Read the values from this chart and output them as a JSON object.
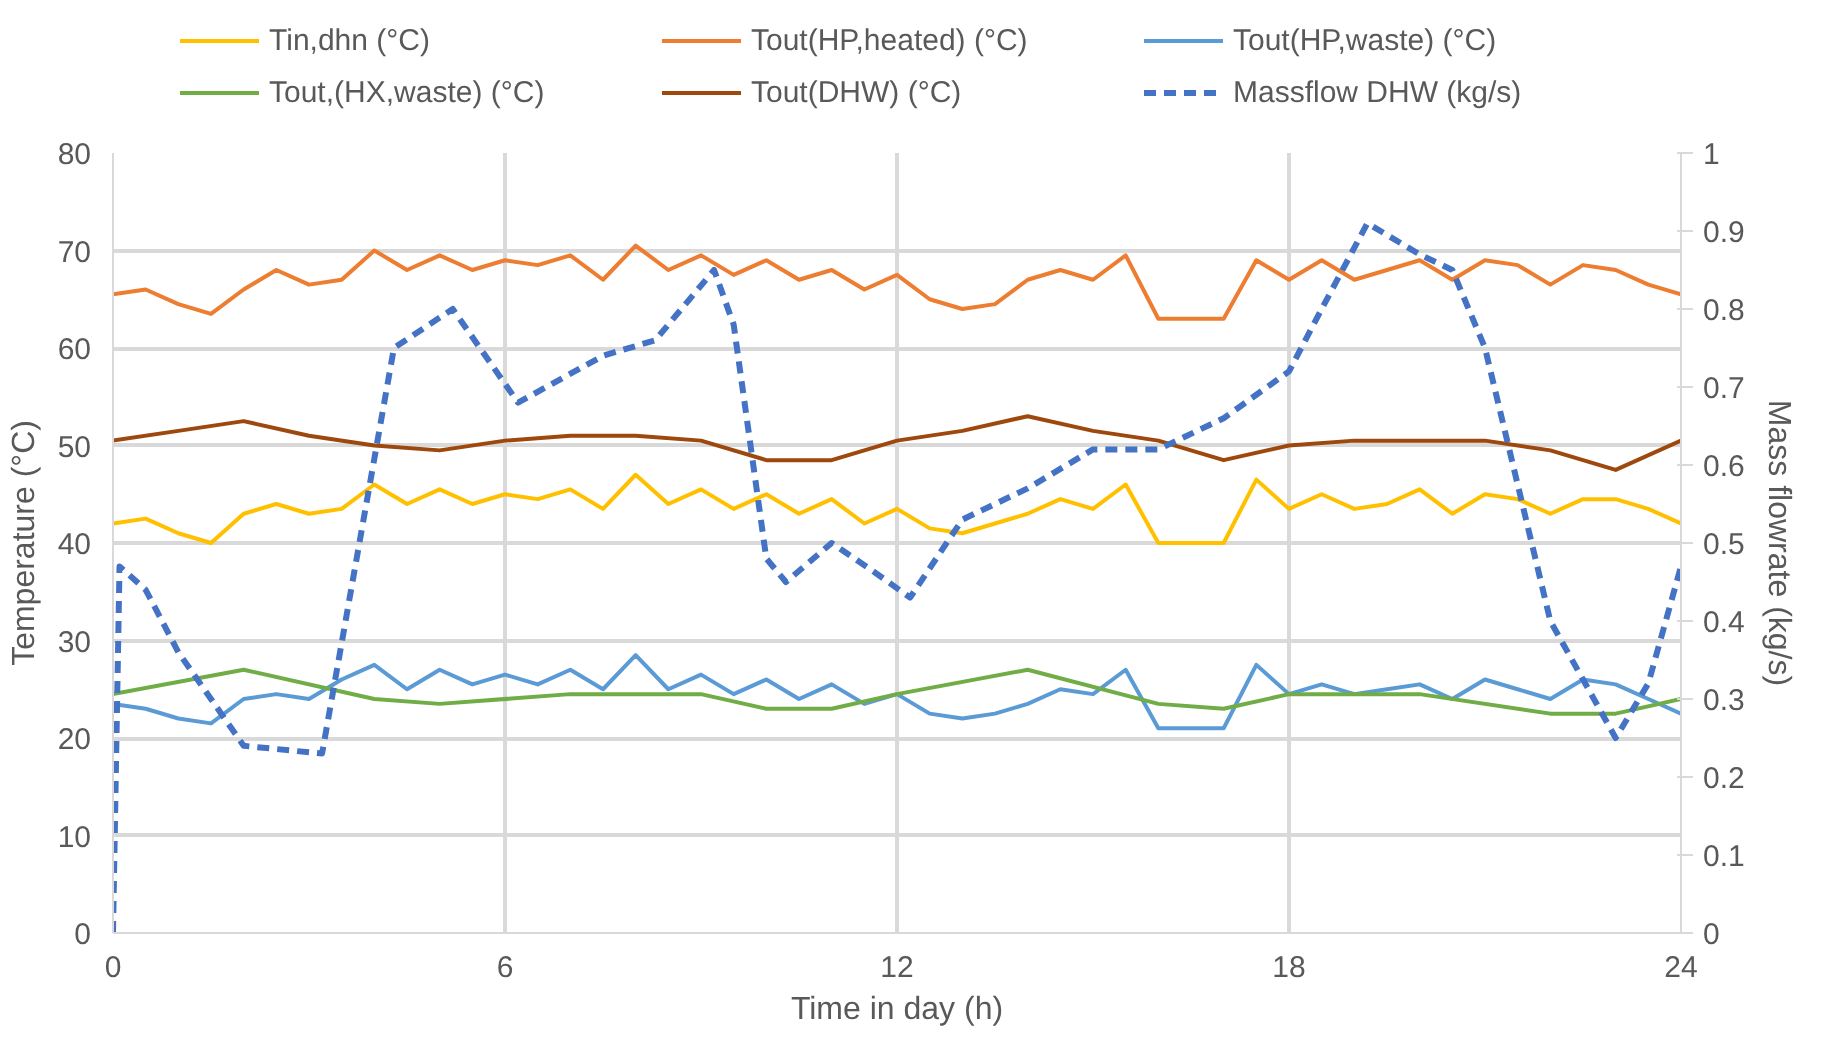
{
  "chart_data": {
    "type": "line",
    "xlabel": "Time in day (h)",
    "ylabel": "Temperature (°C)",
    "y2label": "Mass flowrate (kg/s)",
    "xlim": [
      0,
      24
    ],
    "xticks": [
      0,
      6,
      12,
      18,
      24
    ],
    "ylim": [
      0,
      80
    ],
    "yticks": [
      0,
      10,
      20,
      30,
      40,
      50,
      60,
      70,
      80
    ],
    "y2lim": [
      0,
      1
    ],
    "y2ticks": [
      0,
      0.1,
      0.2,
      0.3,
      0.4,
      0.5,
      0.6,
      0.7,
      0.8,
      0.9,
      1
    ],
    "grid": true,
    "legend": "top",
    "line_style": "solid",
    "marker": "none",
    "series": [
      {
        "name": "Tin,dhn (°C)",
        "color": "#ffc000",
        "x": [
          0,
          0.5,
          1,
          1.5,
          2,
          2.5,
          3,
          3.5,
          4,
          4.5,
          5,
          5.5,
          6,
          6.5,
          7,
          7.5,
          8,
          8.5,
          9,
          9.5,
          10,
          10.5,
          11,
          11.5,
          12,
          12.5,
          13,
          13.5,
          14,
          14.5,
          15,
          15.5,
          16,
          16.5,
          17,
          17.5,
          18,
          18.5,
          19,
          19.5,
          20,
          20.5,
          21,
          21.5,
          22,
          22.5,
          23,
          23.5,
          24
        ],
        "values": [
          42,
          42.5,
          41,
          40,
          43,
          44,
          43,
          43.5,
          46,
          44,
          45.5,
          44,
          45,
          44.5,
          45.5,
          43.5,
          47,
          44,
          45.5,
          43.5,
          45,
          43,
          44.5,
          42,
          43.5,
          41.5,
          41,
          42,
          43,
          44.5,
          43.5,
          46,
          40,
          40,
          40,
          46.5,
          43.5,
          45,
          43.5,
          44,
          45.5,
          43,
          45,
          44.5,
          43,
          44.5,
          44.5,
          43.5,
          42
        ]
      },
      {
        "name": "Tout(HP,heated) (°C)",
        "color": "#ed7d31",
        "x": [
          0,
          0.5,
          1,
          1.5,
          2,
          2.5,
          3,
          3.5,
          4,
          4.5,
          5,
          5.5,
          6,
          6.5,
          7,
          7.5,
          8,
          8.5,
          9,
          9.5,
          10,
          10.5,
          11,
          11.5,
          12,
          12.5,
          13,
          13.5,
          14,
          14.5,
          15,
          15.5,
          16,
          16.5,
          17,
          17.5,
          18,
          18.5,
          19,
          19.5,
          20,
          20.5,
          21,
          21.5,
          22,
          22.5,
          23,
          23.5,
          24
        ],
        "values": [
          65.5,
          66,
          64.5,
          63.5,
          66,
          68,
          66.5,
          67,
          70,
          68,
          69.5,
          68,
          69,
          68.5,
          69.5,
          67,
          70.5,
          68,
          69.5,
          67.5,
          69,
          67,
          68,
          66,
          67.5,
          65,
          64,
          64.5,
          67,
          68,
          67,
          69.5,
          63,
          63,
          63,
          69,
          67,
          69,
          67,
          68,
          69,
          67,
          69,
          68.5,
          66.5,
          68.5,
          68,
          66.5,
          65.5
        ]
      },
      {
        "name": "Tout(HP,waste) (°C)",
        "color": "#5b9bd5",
        "x": [
          0,
          0.5,
          1,
          1.5,
          2,
          2.5,
          3,
          3.5,
          4,
          4.5,
          5,
          5.5,
          6,
          6.5,
          7,
          7.5,
          8,
          8.5,
          9,
          9.5,
          10,
          10.5,
          11,
          11.5,
          12,
          12.5,
          13,
          13.5,
          14,
          14.5,
          15,
          15.5,
          16,
          16.5,
          17,
          17.5,
          18,
          18.5,
          19,
          19.5,
          20,
          20.5,
          21,
          21.5,
          22,
          22.5,
          23,
          23.5,
          24
        ],
        "values": [
          23.5,
          23,
          22,
          21.5,
          24,
          24.5,
          24,
          26,
          27.5,
          25,
          27,
          25.5,
          26.5,
          25.5,
          27,
          25,
          28.5,
          25,
          26.5,
          24.5,
          26,
          24,
          25.5,
          23.5,
          24.5,
          22.5,
          22,
          22.5,
          23.5,
          25,
          24.5,
          27,
          21,
          21,
          21,
          27.5,
          24.5,
          25.5,
          24.5,
          25,
          25.5,
          24,
          26,
          25,
          24,
          26,
          25.5,
          24,
          22.5
        ]
      },
      {
        "name": "Tout,(HX,waste) (°C)",
        "color": "#70ad47",
        "x": [
          0,
          2,
          4,
          5,
          7,
          9,
          10,
          11,
          12,
          14,
          16,
          17,
          18,
          20,
          22,
          23,
          24
        ],
        "values": [
          24.5,
          27,
          24,
          23.5,
          24.5,
          24.5,
          23,
          23,
          24.5,
          27,
          23.5,
          23,
          24.5,
          24.5,
          22.5,
          22.5,
          24
        ]
      },
      {
        "name": "Tout(DHW) (°C)",
        "color": "#9e480e",
        "x": [
          0,
          1,
          2,
          3,
          4,
          5,
          6,
          7,
          8,
          9,
          10,
          11,
          12,
          13,
          14,
          15,
          16,
          17,
          18,
          19,
          20,
          21,
          22,
          23,
          24
        ],
        "values": [
          50.5,
          51.5,
          52.5,
          51,
          50,
          49.5,
          50.5,
          51,
          51,
          50.5,
          48.5,
          48.5,
          50.5,
          51.5,
          53,
          51.5,
          50.5,
          48.5,
          50,
          50.5,
          50.5,
          50.5,
          49.5,
          47.5,
          50.5
        ]
      },
      {
        "name": "Massflow DHW (kg/s)",
        "color": "#4472c4",
        "axis": "y2",
        "line_style": "dashed",
        "x": [
          0,
          0.1,
          0.5,
          1,
          2,
          3.2,
          4.3,
          5.2,
          6.2,
          7.5,
          8.3,
          9.2,
          9.5,
          10,
          10.3,
          11,
          11.7,
          12.2,
          13,
          14,
          15,
          16,
          17,
          18,
          18.5,
          19.2,
          20,
          20.5,
          21,
          22,
          23,
          23.5,
          24
        ],
        "values": [
          0,
          0.47,
          0.44,
          0.36,
          0.24,
          0.23,
          0.75,
          0.8,
          0.68,
          0.74,
          0.76,
          0.85,
          0.78,
          0.48,
          0.45,
          0.5,
          0.46,
          0.43,
          0.53,
          0.57,
          0.62,
          0.62,
          0.66,
          0.72,
          0.8,
          0.91,
          0.87,
          0.85,
          0.75,
          0.4,
          0.25,
          0.32,
          0.47
        ]
      }
    ]
  }
}
